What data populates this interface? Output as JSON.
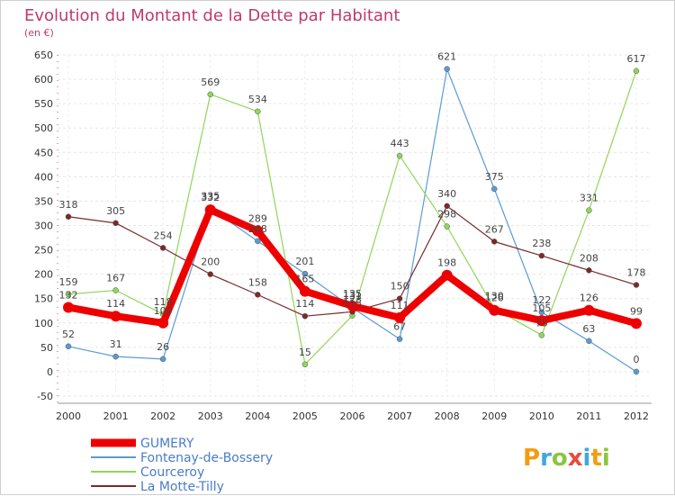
{
  "chart_data": {
    "type": "line",
    "title": "Evolution du Montant de la Dette par Habitant",
    "subtitle": "(en €)",
    "xlabel": "",
    "ylabel": "",
    "ylim": [
      -50,
      650
    ],
    "yticks": [
      650,
      600,
      550,
      500,
      450,
      400,
      350,
      300,
      250,
      200,
      150,
      100,
      50,
      0,
      -50
    ],
    "grid": true,
    "legend_position": "bottom-left",
    "categories": [
      "2000",
      "2001",
      "2002",
      "2003",
      "2004",
      "2005",
      "2006",
      "2007",
      "2008",
      "2009",
      "2010",
      "2011",
      "2012"
    ],
    "series": [
      {
        "name": "GUMERY",
        "color": "#ee0000",
        "values": [
          132,
          114,
          100,
          332,
          289,
          165,
          135,
          111,
          198,
          126,
          105,
          126,
          99
        ]
      },
      {
        "name": "Fontenay-de-Bossery",
        "color": "#5a9bd4",
        "values": [
          52,
          31,
          26,
          335,
          268,
          201,
          131,
          67,
          621,
          375,
          122,
          63,
          0
        ]
      },
      {
        "name": "Courceroy",
        "color": "#8fd65a",
        "values": [
          159,
          167,
          118,
          569,
          534,
          15,
          115,
          443,
          298,
          130,
          75,
          331,
          617
        ]
      },
      {
        "name": "La Motte-Tilly",
        "color": "#7a2a2a",
        "values": [
          318,
          305,
          254,
          200,
          158,
          114,
          123,
          150,
          340,
          267,
          238,
          208,
          178
        ]
      }
    ]
  },
  "logo": {
    "text": "Proxiti"
  }
}
